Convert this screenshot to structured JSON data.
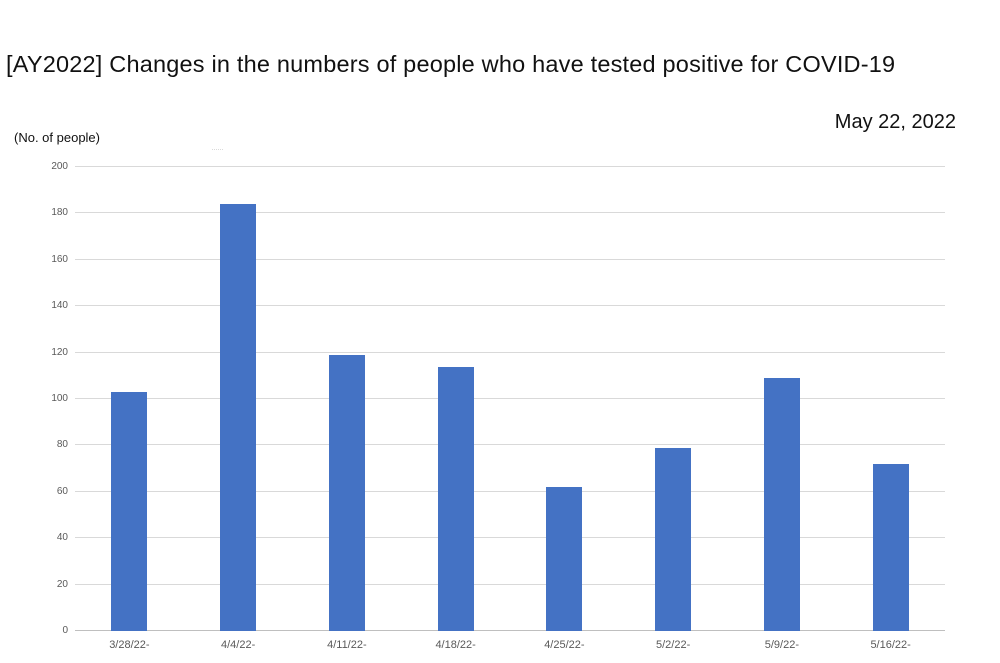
{
  "header": {
    "title": "[AY2022] Changes in the numbers of people who have tested positive for COVID-19",
    "date": "May 22, 2022",
    "unit_label": "(No. of people)"
  },
  "chart_data": {
    "type": "bar",
    "title": "[AY2022] Changes in the numbers of people who have tested positive for COVID-19",
    "subtitle": "May 22, 2022",
    "categories": [
      "3/28/22-",
      "4/4/22-",
      "4/11/22-",
      "4/18/22-",
      "4/25/22-",
      "5/2/22-",
      "5/9/22-",
      "5/16/22-"
    ],
    "values": [
      103,
      184,
      119,
      114,
      62,
      79,
      109,
      72
    ],
    "xlabel": "",
    "ylabel": "(No. of people)",
    "ylim": [
      0,
      200
    ],
    "ytick_step": 20,
    "grid": true,
    "legend_position": "none",
    "bar_color": "#4472C4",
    "gridline_color": "#D9D9D9",
    "axis_line_color": "#BFBFBF",
    "tick_label_color": "#595959"
  }
}
